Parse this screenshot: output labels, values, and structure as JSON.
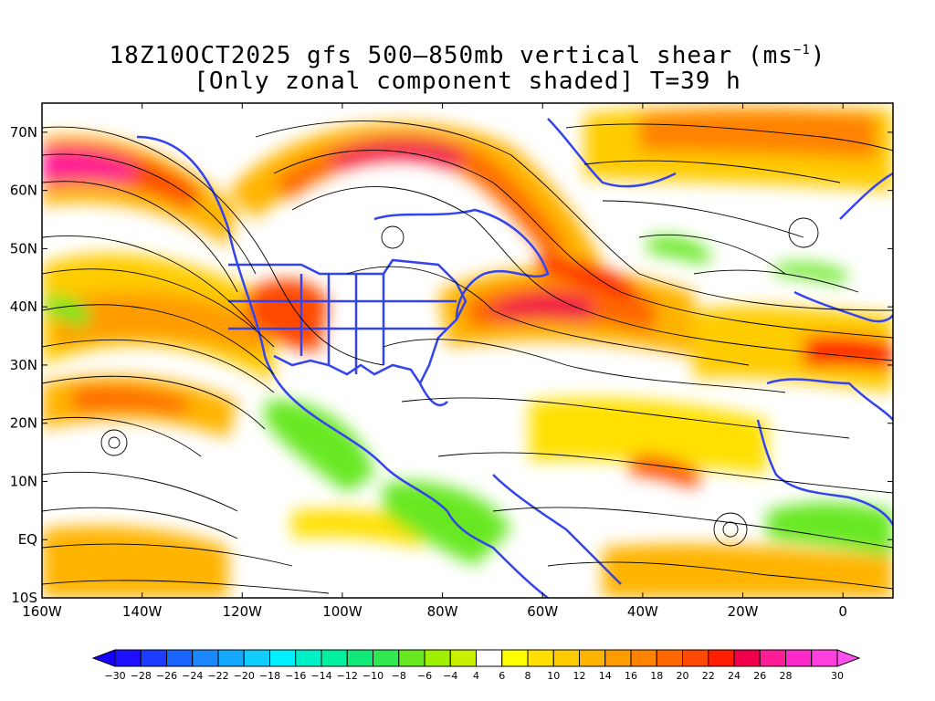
{
  "title": {
    "line1_prefix": "18Z10OCT2025 gfs 500–850mb vertical shear (ms",
    "line1_sup": "−1",
    "line1_suffix": ")",
    "line2": "[Only zonal component shaded] T=39 h"
  },
  "map": {
    "lon_range": [
      -160,
      10
    ],
    "lat_range": [
      -10,
      75
    ],
    "lon_ticks": [
      "160W",
      "140W",
      "120W",
      "100W",
      "80W",
      "60W",
      "40W",
      "20W",
      "0"
    ],
    "lat_ticks": [
      "70N",
      "60N",
      "50N",
      "40N",
      "30N",
      "20N",
      "10N",
      "EQ",
      "10S"
    ],
    "coast_color": "#3344ee",
    "jet_cores": [
      {
        "name": "north-pacific-jet",
        "lon": [
          -160,
          -115
        ],
        "lat": [
          58,
          66
        ],
        "max": 28
      },
      {
        "name": "subtropical-pacific-jet",
        "lon": [
          -160,
          -110
        ],
        "lat": [
          22,
          40
        ],
        "max": 20
      },
      {
        "name": "canada-jet",
        "lon": [
          -120,
          -65
        ],
        "lat": [
          55,
          70
        ],
        "max": 26
      },
      {
        "name": "atlantic-jet",
        "lon": [
          -80,
          -30
        ],
        "lat": [
          35,
          46
        ],
        "max": 28
      },
      {
        "name": "north-atlantic-jet",
        "lon": [
          -50,
          10
        ],
        "lat": [
          60,
          75
        ],
        "max": 22
      }
    ]
  },
  "colorbar": {
    "labels": [
      "−30",
      "−28",
      "−26",
      "−24",
      "−22",
      "−20",
      "−18",
      "−16",
      "−14",
      "−12",
      "−10",
      "−8",
      "−6",
      "−4",
      "4",
      "6",
      "8",
      "10",
      "12",
      "14",
      "16",
      "18",
      "20",
      "22",
      "24",
      "26",
      "28",
      "30"
    ],
    "colors": [
      "#1e10ff",
      "#1c3cff",
      "#1a64ff",
      "#1c88ff",
      "#14a8ff",
      "#10ccff",
      "#00f0ff",
      "#00f0c8",
      "#00f0a0",
      "#10e878",
      "#30e850",
      "#68e820",
      "#a0ee00",
      "#c8f000",
      "#ffffff",
      "#ffff00",
      "#ffe000",
      "#ffcc00",
      "#ffb400",
      "#ff9c00",
      "#ff8200",
      "#ff6800",
      "#ff4800",
      "#ff1e00",
      "#f0004a",
      "#ff1e96",
      "#ff28c8",
      "#ff40dc"
    ],
    "under_color": "#1400ff",
    "over_color": "#ff50f0"
  }
}
